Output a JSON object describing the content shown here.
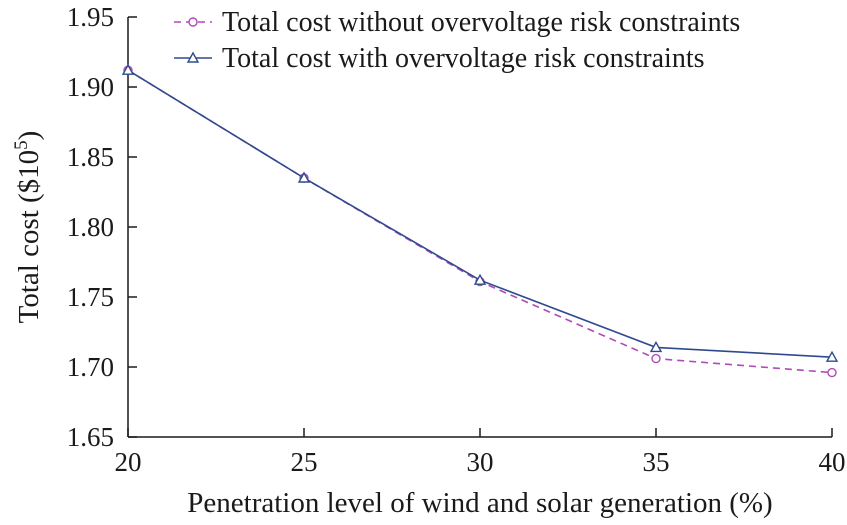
{
  "chart_data": {
    "type": "line",
    "xlabel": "Penetration level of wind and solar generation (%)",
    "ylabel_prefix": "Total cost ($10",
    "ylabel_exp": "5",
    "ylabel_suffix": ")",
    "x": [
      20,
      25,
      30,
      35,
      40
    ],
    "xlim": [
      20,
      40
    ],
    "ylim": [
      1.65,
      1.95
    ],
    "xticks": [
      "20",
      "25",
      "30",
      "35",
      "40"
    ],
    "yticks": [
      "1.65",
      "1.70",
      "1.75",
      "1.80",
      "1.85",
      "1.90",
      "1.95"
    ],
    "legend_position": "top-right",
    "grid": false,
    "series": [
      {
        "name": "Total cost without overvoltage risk constraints",
        "values": [
          1.912,
          1.835,
          1.761,
          1.706,
          1.696
        ],
        "color": "#b04ab8",
        "line_style": "dashed",
        "marker": "circle"
      },
      {
        "name": "Total cost with overvoltage risk constraints",
        "values": [
          1.912,
          1.835,
          1.762,
          1.714,
          1.707
        ],
        "color": "#2e4a8f",
        "line_style": "solid",
        "marker": "triangle"
      }
    ]
  }
}
